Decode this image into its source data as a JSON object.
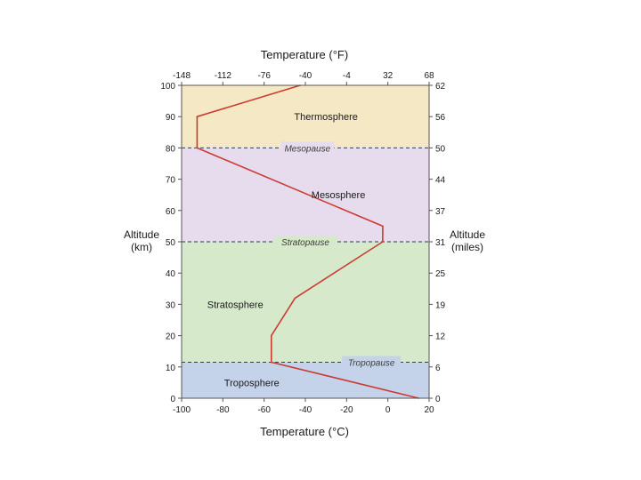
{
  "chart_data": {
    "type": "line",
    "title_top": "Temperature (°F)",
    "xlabel": "Temperature (°C)",
    "ylabel_left": [
      "Altitude",
      "(km)"
    ],
    "ylabel_right": [
      "Altitude",
      "(miles)"
    ],
    "xlim": [
      -100,
      20
    ],
    "ylim": [
      0,
      100
    ],
    "x_ticks_c": [
      -100,
      -80,
      -60,
      -40,
      -20,
      0,
      20
    ],
    "x_tick_labels_c": [
      "-100",
      "-80",
      "-60",
      "-40",
      "-20",
      "0",
      "20"
    ],
    "x_ticks_f_pos_c": [
      -100,
      -80,
      -60,
      -40,
      -20,
      0,
      20
    ],
    "x_tick_labels_f": [
      "-148",
      "-112",
      "-76",
      "-40",
      "-4",
      "32",
      "68"
    ],
    "y_ticks_km": [
      0,
      10,
      20,
      30,
      40,
      50,
      60,
      70,
      80,
      90,
      100
    ],
    "y_tick_labels_km": [
      "0",
      "10",
      "20",
      "30",
      "40",
      "50",
      "60",
      "70",
      "80",
      "90",
      "100"
    ],
    "y_ticks_miles_pos_km": [
      0,
      10,
      20,
      30,
      40,
      50,
      60,
      70,
      80,
      90,
      100
    ],
    "y_tick_labels_miles": [
      "0",
      "6",
      "12",
      "19",
      "25",
      "31",
      "37",
      "44",
      "50",
      "56",
      "62"
    ],
    "layers": [
      {
        "name": "Troposphere",
        "from": 0,
        "to": 11.5,
        "color": "#c5d3ea"
      },
      {
        "name": "Stratosphere",
        "from": 11.5,
        "to": 50,
        "color": "#d6eacb"
      },
      {
        "name": "Mesosphere",
        "from": 50,
        "to": 80,
        "color": "#e6dcee"
      },
      {
        "name": "Thermosphere",
        "from": 80,
        "to": 100,
        "color": "#f5e8c4"
      }
    ],
    "layer_labels": [
      {
        "text": "Troposphere",
        "x": -66,
        "y": 5
      },
      {
        "text": "Stratosphere",
        "x": -74,
        "y": 30
      },
      {
        "text": "Mesosphere",
        "x": -24,
        "y": 65
      },
      {
        "text": "Thermosphere",
        "x": -30,
        "y": 90
      }
    ],
    "boundaries": [
      {
        "name": "Tropopause",
        "alt": 11.5,
        "label_x": -8
      },
      {
        "name": "Stratopause",
        "alt": 50,
        "label_x": -40
      },
      {
        "name": "Mesopause",
        "alt": 80,
        "label_x": -39
      }
    ],
    "series": [
      {
        "name": "Temperature profile",
        "color": "#cc3b33",
        "x": [
          15,
          -56.5,
          -56.5,
          -45,
          -2.5,
          -2.5,
          -92.5,
          -92.5,
          -42.5
        ],
        "y": [
          0,
          11.5,
          20,
          32,
          50,
          55,
          80,
          90,
          100
        ]
      }
    ],
    "colors": {
      "axis": "#555555",
      "dash": "#2b3a67",
      "text": "#1a1a1a"
    }
  }
}
